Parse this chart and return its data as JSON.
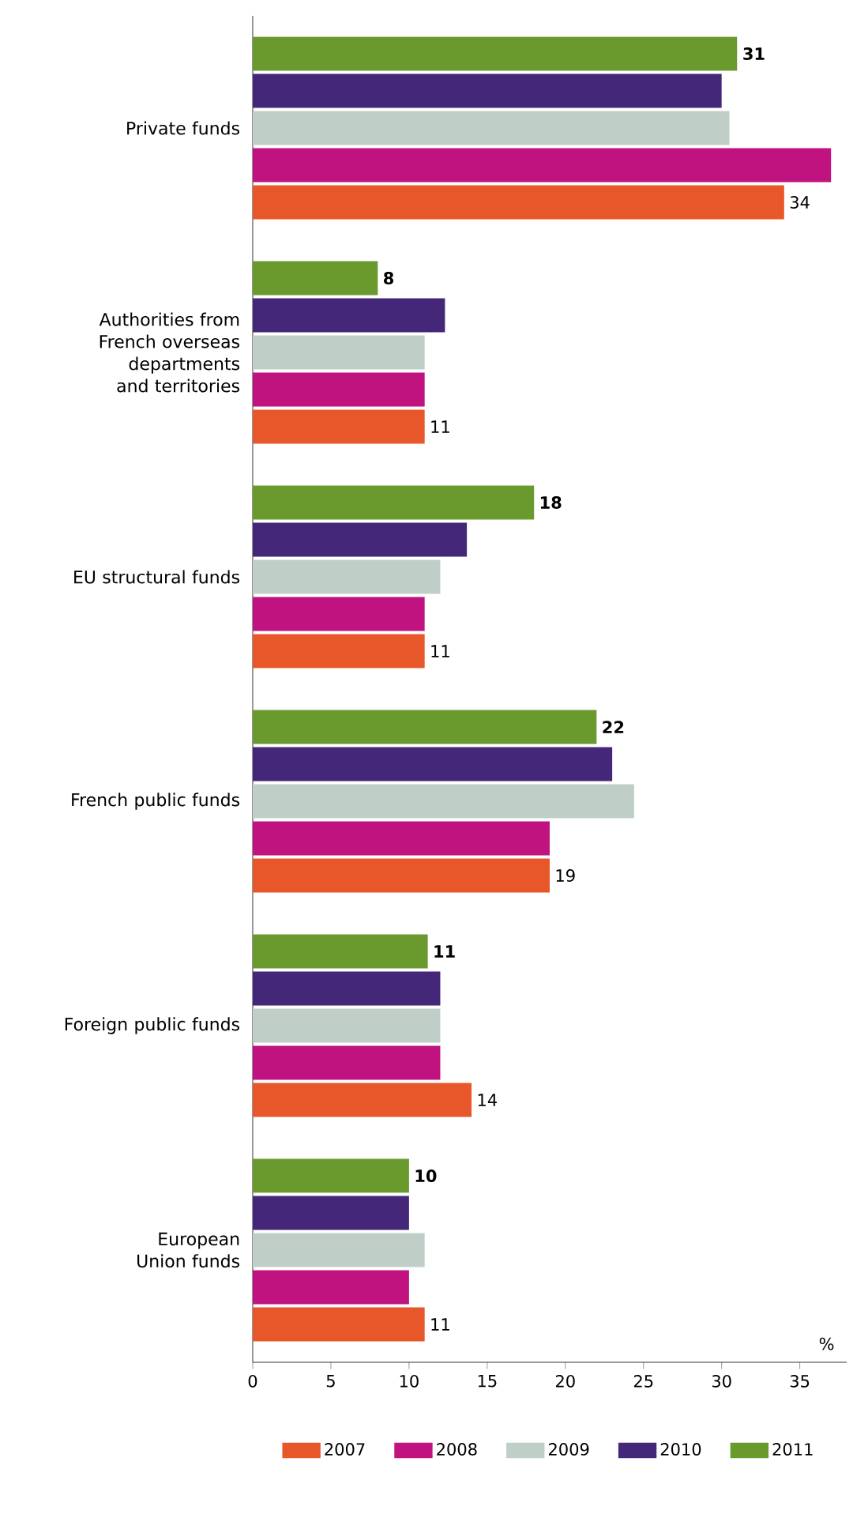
{
  "chart_data": {
    "type": "bar",
    "orientation": "horizontal",
    "xlabel": "%",
    "categories": [
      "Private funds",
      "Authorities from French overseas departments and territories",
      "EU structural funds",
      "French public funds",
      "Foreign public funds",
      "European Union funds"
    ],
    "series": [
      {
        "name": "2007",
        "color": "#e8572a",
        "values": [
          34,
          11,
          11,
          19,
          14,
          11
        ],
        "value_labels": [
          "34",
          "11",
          "11",
          "19",
          "14",
          "11"
        ]
      },
      {
        "name": "2008",
        "color": "#c0137f",
        "values": [
          37,
          11,
          11,
          19,
          12,
          10
        ]
      },
      {
        "name": "2009",
        "color": "#bfcfc8",
        "values": [
          30.5,
          11,
          12,
          24.4,
          12,
          11
        ]
      },
      {
        "name": "2010",
        "color": "#45277a",
        "values": [
          30,
          12.3,
          13.7,
          23,
          12,
          10
        ]
      },
      {
        "name": "2011",
        "color": "#6a9a2e",
        "values": [
          31,
          8,
          18,
          22,
          11.2,
          10
        ],
        "value_labels": [
          "31",
          "8",
          "18",
          "22",
          "11",
          "10"
        ]
      }
    ],
    "xlim": [
      0,
      38
    ],
    "xticks": [
      0,
      5,
      10,
      15,
      20,
      25,
      30,
      35
    ],
    "grid": false,
    "legend": "bottom"
  }
}
